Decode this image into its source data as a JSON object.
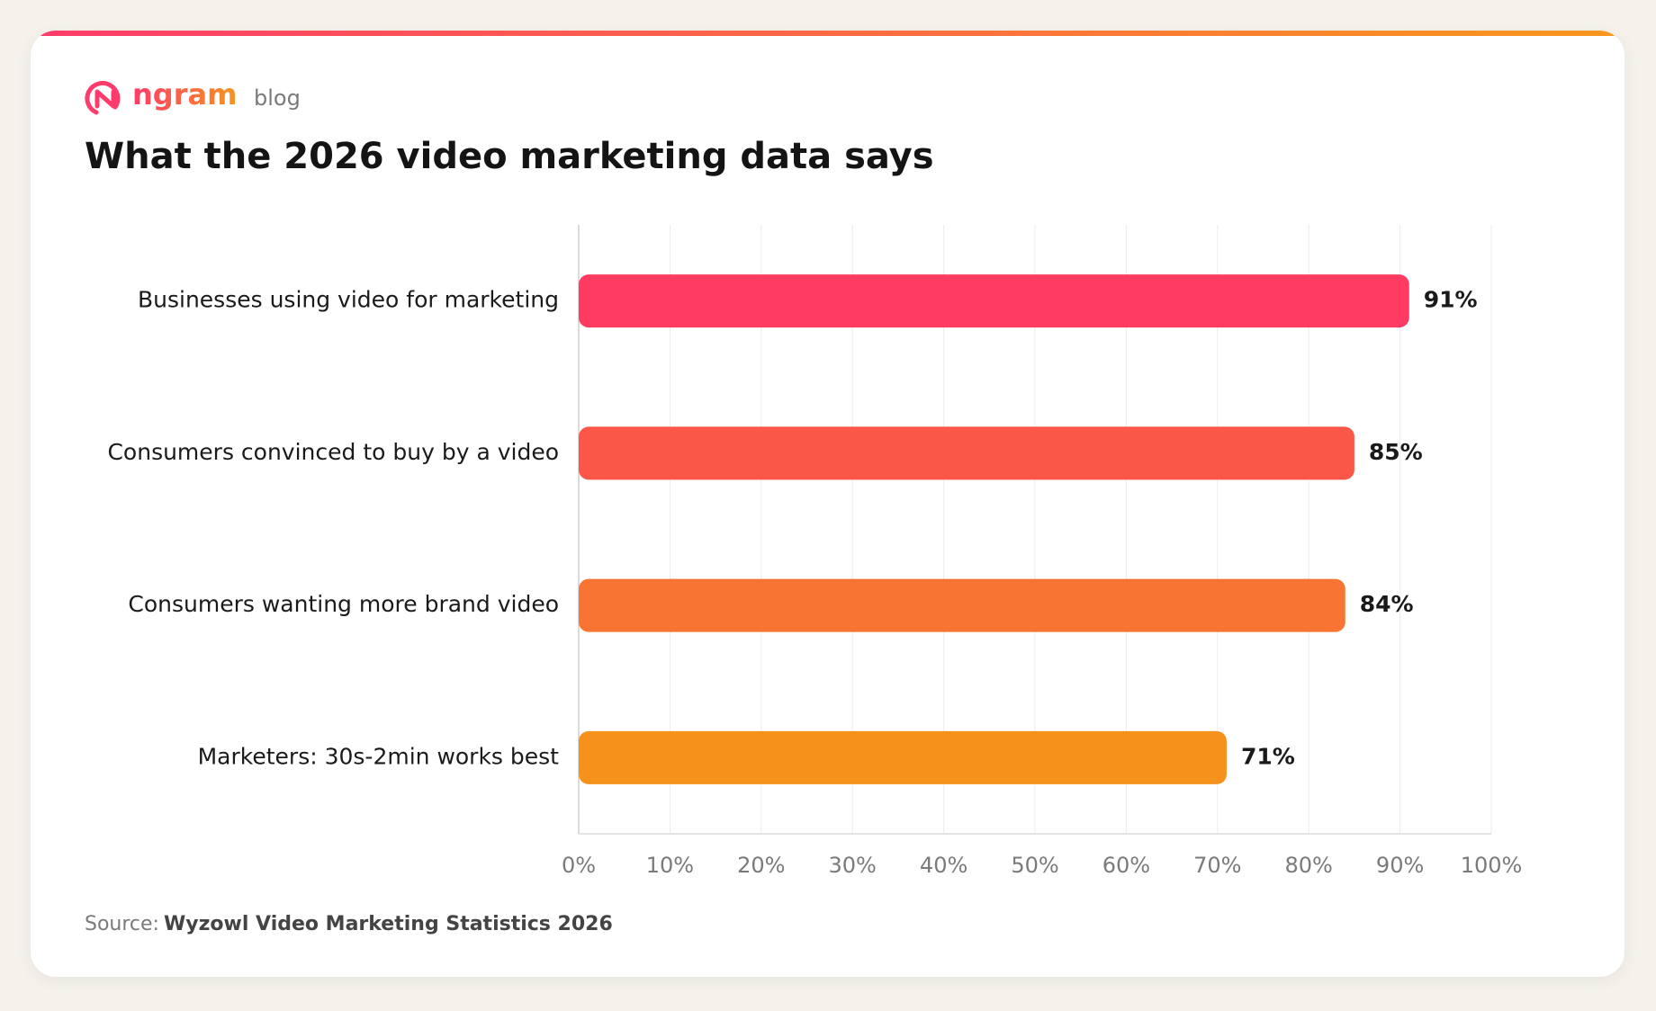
{
  "header": {
    "brand": "ngram",
    "section": "blog"
  },
  "chart_data": {
    "type": "bar",
    "orientation": "horizontal",
    "title": "What the 2026 video marketing data says",
    "categories": [
      "Businesses using video for marketing",
      "Consumers convinced to buy by a video",
      "Consumers wanting more brand video",
      "Marketers: 30s-2min works best"
    ],
    "values": [
      91,
      85,
      84,
      71
    ],
    "value_labels": [
      "91%",
      "85%",
      "84%",
      "71%"
    ],
    "colors": [
      "#ff3b62",
      "#fa5749",
      "#f87432",
      "#f6921b"
    ],
    "xlim": [
      0,
      100
    ],
    "xticks": [
      {
        "value": 0,
        "label": "0%"
      },
      {
        "value": 10,
        "label": "10%"
      },
      {
        "value": 20,
        "label": "20%"
      },
      {
        "value": 30,
        "label": "30%"
      },
      {
        "value": 40,
        "label": "40%"
      },
      {
        "value": 50,
        "label": "50%"
      },
      {
        "value": 60,
        "label": "60%"
      },
      {
        "value": 70,
        "label": "70%"
      },
      {
        "value": 80,
        "label": "80%"
      },
      {
        "value": 90,
        "label": "90%"
      },
      {
        "value": 100,
        "label": "100%"
      }
    ],
    "grid": true
  },
  "footer": {
    "source_label": "Source:",
    "source": "Wyzowl Video Marketing Statistics 2026"
  }
}
